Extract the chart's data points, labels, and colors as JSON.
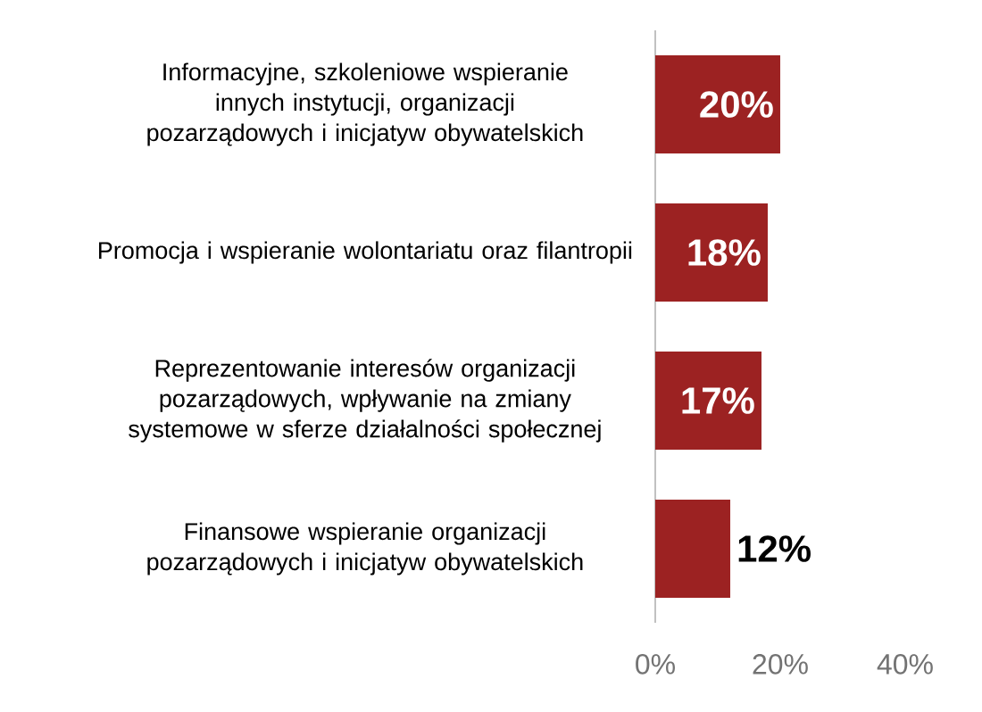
{
  "chart_data": {
    "type": "bar",
    "orientation": "horizontal",
    "categories": [
      "Informacyjne, szkoleniowe wspieranie innych instytucji, organizacji pozarządowych i inicjatyw obywatelskich",
      "Promocja i wspieranie wolontariatu oraz filantropii",
      "Reprezentowanie interesów organizacji pozarządowych, wpływanie na zmiany systemowe w sferze działalności społecznej",
      "Finansowe wspieranie organizacji pozarządowych i inicjatyw obywatelskich"
    ],
    "values": [
      20,
      18,
      17,
      12
    ],
    "value_labels": [
      "20%",
      "18%",
      "17%",
      "12%"
    ],
    "color": "#9c2222",
    "xlim": [
      0,
      40
    ],
    "xticks": [
      {
        "value": 0,
        "label": "0%"
      },
      {
        "value": 20,
        "label": "20%"
      },
      {
        "value": 40,
        "label": "40%"
      }
    ]
  }
}
